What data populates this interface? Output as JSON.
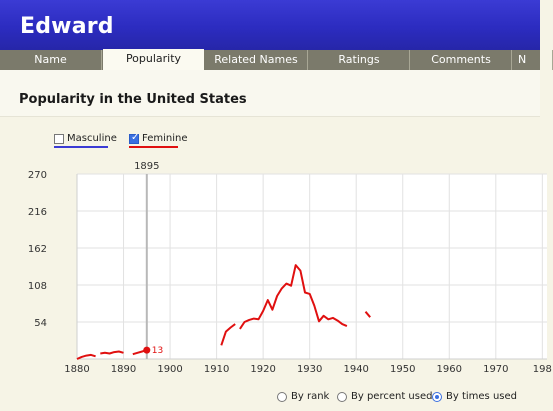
{
  "header": {
    "title": "Edward"
  },
  "tabs": [
    {
      "label": "Name",
      "active": false
    },
    {
      "label": "Popularity",
      "active": true
    },
    {
      "label": "Related Names",
      "active": false
    },
    {
      "label": "Ratings",
      "active": false
    },
    {
      "label": "Comments",
      "active": false
    },
    {
      "label": "N",
      "active": false
    }
  ],
  "section": {
    "title": "Popularity in the United States"
  },
  "legend": {
    "masculine": {
      "label": "Masculine",
      "checked": false,
      "color": "#3b3bd4"
    },
    "feminine": {
      "label": "Feminine",
      "checked": true,
      "color": "#e01010"
    }
  },
  "cursor": {
    "year_label": "1895",
    "value_label": "13"
  },
  "view_options": [
    {
      "label": "By rank",
      "selected": false
    },
    {
      "label": "By percent used",
      "selected": false
    },
    {
      "label": "By times used",
      "selected": true
    }
  ],
  "colors": {
    "accent": "#3b3bd4",
    "feminine": "#e01010",
    "grid": "#e2e2e2"
  },
  "chart_data": {
    "type": "line",
    "x_ticks": [
      "1880",
      "1890",
      "1900",
      "1910",
      "1920",
      "1930",
      "1940",
      "1950",
      "1960",
      "1970",
      "198"
    ],
    "y_ticks": [
      "270",
      "216",
      "162",
      "108",
      "54"
    ],
    "ylim": [
      0,
      270
    ],
    "xlim": [
      1880,
      1981
    ],
    "grid": true,
    "series": [
      {
        "name": "Feminine",
        "segments": [
          [
            [
              1880,
              0
            ],
            [
              1881,
              3
            ],
            [
              1882,
              5
            ],
            [
              1883,
              6
            ],
            [
              1884,
              4
            ]
          ],
          [
            [
              1885,
              8
            ],
            [
              1886,
              9
            ],
            [
              1887,
              8
            ],
            [
              1888,
              10
            ],
            [
              1889,
              11
            ],
            [
              1890,
              9
            ]
          ],
          [
            [
              1892,
              7
            ],
            [
              1893,
              9
            ],
            [
              1894,
              11
            ],
            [
              1895,
              13
            ]
          ],
          [
            [
              1911,
              20
            ],
            [
              1912,
              40
            ],
            [
              1913,
              46
            ],
            [
              1914,
              51
            ]
          ],
          [
            [
              1915,
              44
            ],
            [
              1916,
              54
            ],
            [
              1917,
              57
            ],
            [
              1918,
              59
            ],
            [
              1919,
              58
            ],
            [
              1920,
              70
            ],
            [
              1921,
              86
            ],
            [
              1922,
              72
            ],
            [
              1923,
              92
            ],
            [
              1924,
              103
            ],
            [
              1925,
              110
            ],
            [
              1926,
              107
            ],
            [
              1927,
              137
            ],
            [
              1928,
              129
            ],
            [
              1929,
              97
            ],
            [
              1930,
              95
            ],
            [
              1931,
              78
            ],
            [
              1932,
              55
            ],
            [
              1933,
              63
            ],
            [
              1934,
              58
            ],
            [
              1935,
              60
            ],
            [
              1936,
              56
            ],
            [
              1937,
              51
            ],
            [
              1938,
              48
            ]
          ],
          [
            [
              1942,
              69
            ],
            [
              1943,
              61
            ]
          ]
        ]
      }
    ],
    "cursor_x": 1895
  }
}
